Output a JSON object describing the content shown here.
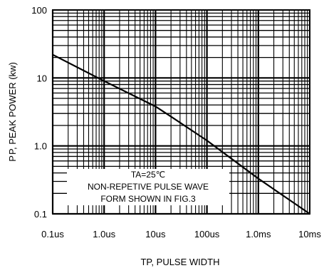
{
  "chart_data": {
    "type": "line",
    "xlabel": "TP, PULSE WIDTH",
    "ylabel": "P P, PEAK POWER (kw)",
    "x_scale": "log",
    "y_scale": "log",
    "xlim_seconds": [
      1e-07,
      0.01
    ],
    "ylim_kw": [
      0.1,
      100
    ],
    "x_tick_labels": [
      "0.1us",
      "1.0us",
      "10us",
      "100us",
      "1.0ms",
      "10ms"
    ],
    "y_tick_labels": [
      "0.1",
      "1.0",
      "10",
      "100"
    ],
    "grid": true,
    "series": [
      {
        "x_seconds": [
          1e-07,
          1e-06,
          1e-05,
          2e-05,
          0.0001,
          0.001,
          0.01
        ],
        "y_kw": [
          22,
          9,
          3.8,
          2.7,
          1.2,
          0.33,
          0.1
        ]
      }
    ],
    "annotation": {
      "condition": "TA=25℃",
      "line1": "NON-REPETIVE PULSE WAVE",
      "line2": "FORM SHOWN IN FIG.3"
    }
  }
}
